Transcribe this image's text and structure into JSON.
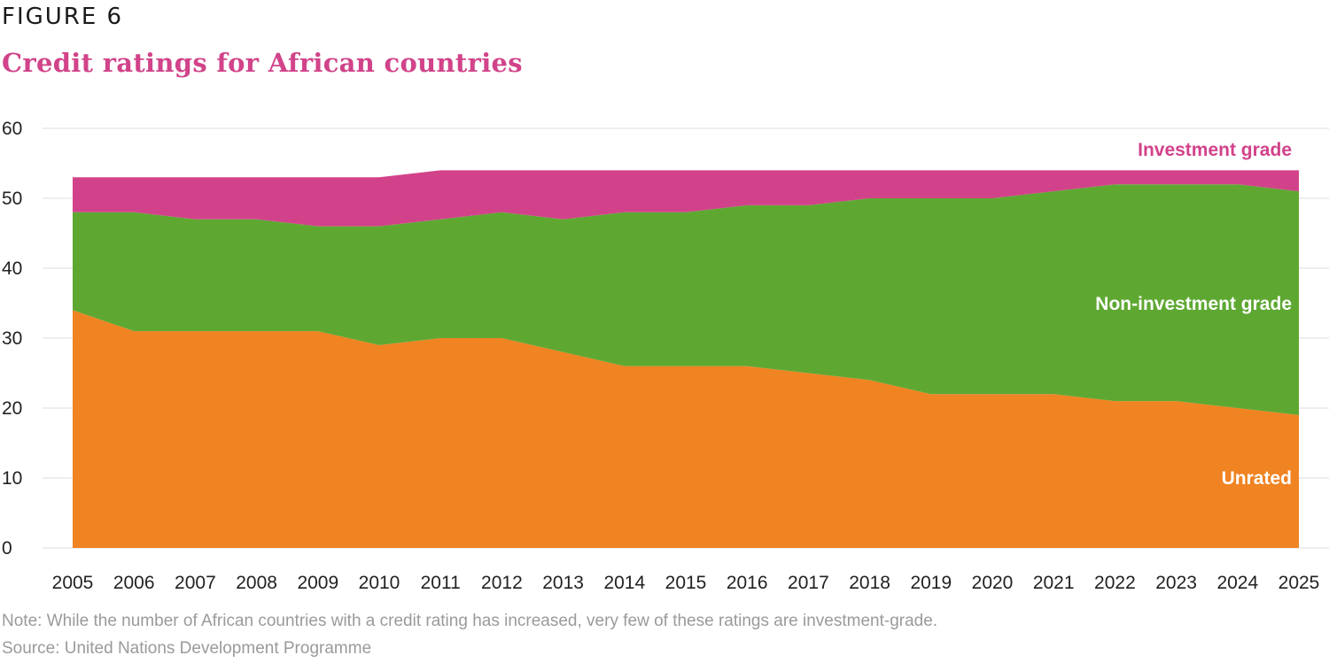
{
  "figure_label": "FIGURE 6",
  "title": "Credit ratings for African countries",
  "note": "Note: While the number of African countries with a credit rating has increased, very few of these ratings are investment-grade.",
  "source": "Source: United Nations Development Programme",
  "chart_data": {
    "type": "area",
    "stacked": true,
    "title": "Credit ratings for African countries",
    "xlabel": "",
    "ylabel": "",
    "ylim": [
      0,
      60
    ],
    "yticks": [
      0,
      10,
      20,
      30,
      40,
      50,
      60
    ],
    "grid": true,
    "categories": [
      "2005",
      "2006",
      "2007",
      "2008",
      "2009",
      "2010",
      "2011",
      "2012",
      "2013",
      "2014",
      "2015",
      "2016",
      "2017",
      "2018",
      "2019",
      "2020",
      "2021",
      "2022",
      "2023",
      "2024",
      "2025"
    ],
    "series": [
      {
        "name": "Unrated",
        "color": "#f08322",
        "label_color": "#ffffff",
        "values": [
          34,
          31,
          31,
          31,
          31,
          29,
          30,
          30,
          28,
          26,
          26,
          26,
          25,
          24,
          22,
          22,
          22,
          21,
          21,
          20,
          19
        ]
      },
      {
        "name": "Non-investment grade",
        "color": "#5ea832",
        "label_color": "#ffffff",
        "values": [
          14,
          17,
          16,
          16,
          15,
          17,
          17,
          18,
          19,
          22,
          22,
          23,
          24,
          26,
          28,
          28,
          29,
          31,
          31,
          32,
          32
        ]
      },
      {
        "name": "Investment grade",
        "color": "#d2428a",
        "label_color": "#d2428a",
        "values": [
          5,
          5,
          6,
          6,
          7,
          7,
          7,
          6,
          7,
          6,
          6,
          5,
          5,
          4,
          4,
          4,
          3,
          2,
          2,
          2,
          3
        ]
      }
    ],
    "legend": "inline-right"
  }
}
